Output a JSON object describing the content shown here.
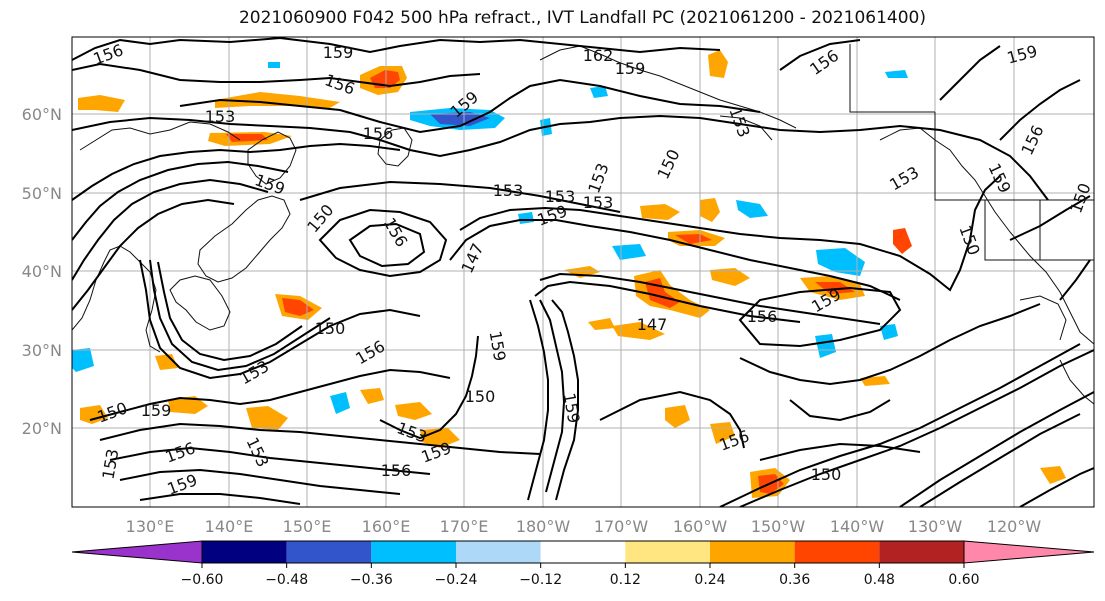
{
  "title": "2021060900 F042 500 hPa refract., IVT Landfall PC (2021061200 - 2021061400)",
  "map": {
    "lon_labels": [
      "130°E",
      "140°E",
      "150°E",
      "160°E",
      "170°E",
      "180°W",
      "170°W",
      "160°W",
      "150°W",
      "140°W",
      "130°W",
      "120°W"
    ],
    "lat_labels": [
      "60°N",
      "50°N",
      "40°N",
      "30°N",
      "20°N"
    ],
    "contour_labels": [
      "156",
      "159",
      "162",
      "159",
      "156",
      "159",
      "153",
      "156",
      "159",
      "156",
      "153",
      "150",
      "153",
      "159",
      "156",
      "156",
      "153",
      "150",
      "153",
      "159",
      "147",
      "153",
      "153",
      "159",
      "150",
      "150",
      "156",
      "159",
      "147",
      "150",
      "156",
      "153",
      "159",
      "150",
      "150",
      "159",
      "156",
      "153",
      "159",
      "153",
      "153",
      "159",
      "156",
      "159",
      "156",
      "150"
    ]
  },
  "colorbar": {
    "colors": [
      "#9933cc",
      "#000080",
      "#3355cc",
      "#00bfff",
      "#add8f7",
      "#ffffff",
      "#ffe680",
      "#ffa500",
      "#ff4500",
      "#b22222",
      "#ff88aa"
    ],
    "tick_labels": [
      "−0.60",
      "−0.48",
      "−0.36",
      "−0.24",
      "−0.12",
      "0.12",
      "0.24",
      "0.36",
      "0.48",
      "0.60"
    ]
  }
}
